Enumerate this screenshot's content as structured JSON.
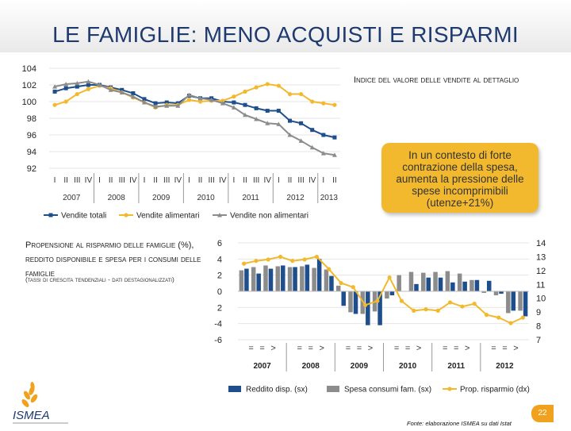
{
  "page": {
    "title": "LE FAMIGLIE: MENO ACQUISTI E RISPARMI",
    "retail_title": "Indice del valore delle vendite al dettaglio",
    "callout": "In un contesto di forte contrazione della spesa, aumenta la pressione delle spese incomprimibili (utenze+21%)",
    "savings_title": "Propensione al risparmio delle famiglie (%), reddito disponibile e spesa per i consumi delle famiglie",
    "savings_subtitle": "(tassi di crescita tendenziali - dati destagionalizzati)",
    "logo_text": "ISMEA",
    "page_number": "22",
    "source": "Fonte: elaborazione ISMEA su dati Istat",
    "colors": {
      "navy": "#1f4e8c",
      "gray": "#8c8c8c",
      "yellow": "#f2b92e",
      "title": "#1f3a6e"
    }
  },
  "chart_data": [
    {
      "type": "line",
      "title": "Indice del valore delle vendite al dettaglio",
      "ylim": [
        92,
        104
      ],
      "yticks": [
        "104",
        "102",
        "100",
        "98",
        "96",
        "94",
        "92"
      ],
      "year_labels": [
        "2007",
        "2008",
        "2009",
        "2010",
        "2011",
        "2012",
        "2013"
      ],
      "quarter_labels": [
        "I",
        "II",
        "III",
        "IV"
      ],
      "series": [
        {
          "name": "Vendite totali",
          "color": "#1f4e8c",
          "marker": "square",
          "values": [
            101.2,
            101.6,
            101.8,
            102.0,
            102.0,
            101.7,
            101.4,
            101.0,
            100.3,
            99.8,
            99.9,
            99.8,
            100.7,
            100.4,
            100.4,
            100.0,
            99.9,
            99.6,
            99.2,
            98.9,
            98.9,
            97.7,
            97.4,
            96.6,
            96.0,
            95.7
          ]
        },
        {
          "name": "Vendite alimentari",
          "color": "#f2b92e",
          "marker": "circle",
          "values": [
            99.6,
            100.0,
            100.9,
            101.5,
            101.9,
            101.6,
            101.1,
            100.5,
            99.9,
            99.3,
            99.6,
            99.6,
            100.2,
            100.0,
            100.1,
            100.1,
            100.6,
            101.2,
            101.7,
            102.1,
            101.9,
            100.9,
            100.9,
            100.0,
            99.8,
            99.6
          ]
        },
        {
          "name": "Vendite non alimentari",
          "color": "#8c8c8c",
          "marker": "triangle",
          "values": [
            101.8,
            102.1,
            102.2,
            102.4,
            102.0,
            101.4,
            101.1,
            100.6,
            99.9,
            99.4,
            99.5,
            99.5,
            100.8,
            100.4,
            100.2,
            99.8,
            99.3,
            98.4,
            97.9,
            97.4,
            97.3,
            96.0,
            95.3,
            94.5,
            93.8,
            93.6
          ]
        }
      ]
    },
    {
      "type": "bar",
      "title": "Propensione al risparmio delle famiglie (%), reddito disponibile e spesa per i consumi delle famiglie",
      "ylim_left": [
        -6,
        6
      ],
      "ylim_right": [
        7,
        14
      ],
      "yticks_left": [
        "6",
        "4",
        "2",
        "0",
        "2",
        "-4",
        "-6"
      ],
      "yticks_right": [
        "14",
        "13",
        "12",
        "11",
        "10",
        "9",
        "8",
        "7"
      ],
      "year_labels": [
        "2007",
        "2008",
        "2009",
        "2010",
        "2011",
        "2012"
      ],
      "quarter_marks": [
        "=",
        "=",
        ">"
      ],
      "series": [
        {
          "name": "Reddito disp. (sx)",
          "type": "bar",
          "axis": "left",
          "color": "#1f4e8c",
          "values": [
            2.8,
            2.2,
            2.8,
            3.2,
            3.0,
            3.3,
            4.0,
            1.9,
            -1.8,
            -2.8,
            -4.2,
            -4.2,
            -0.5,
            0.0,
            0.9,
            1.7,
            1.7,
            1.1,
            1.2,
            1.4,
            1.3,
            -0.3,
            -2.4,
            -3.1
          ]
        },
        {
          "name": "Spesa consumi fam. (sx)",
          "type": "bar",
          "axis": "left",
          "color": "#8c8c8c",
          "values": [
            2.6,
            3.0,
            3.2,
            3.1,
            3.0,
            3.1,
            2.9,
            2.7,
            0.7,
            -2.6,
            -2.8,
            -2.5,
            -0.9,
            2.0,
            2.4,
            2.3,
            2.4,
            2.5,
            2.2,
            1.4,
            -0.2,
            -0.5,
            -2.7,
            -2.4
          ]
        },
        {
          "name": "Prop. risparmio (dx)",
          "type": "line",
          "axis": "right",
          "color": "#f2b92e",
          "values": [
            12.5,
            12.7,
            12.8,
            13.0,
            12.7,
            12.8,
            13.0,
            12.1,
            11.1,
            10.8,
            9.5,
            9.8,
            11.5,
            9.8,
            9.1,
            9.2,
            9.1,
            9.7,
            9.4,
            9.6,
            8.8,
            8.6,
            8.2,
            8.6
          ]
        }
      ]
    }
  ]
}
